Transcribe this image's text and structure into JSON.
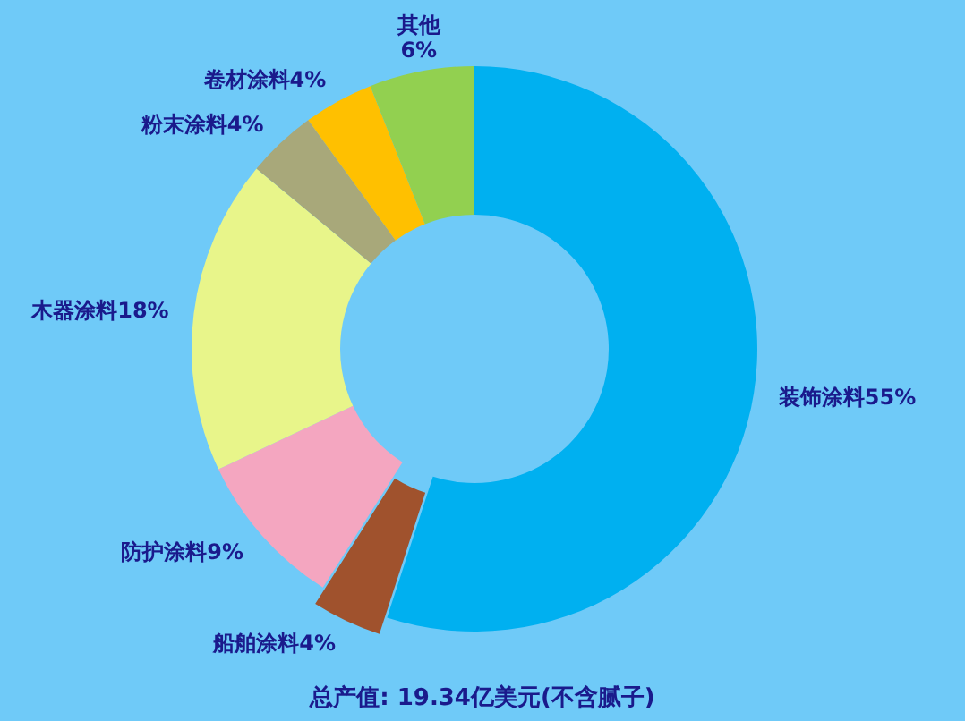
{
  "chart_data": {
    "type": "donut",
    "categories": [
      "装饰涂料",
      "船舶涂料",
      "防护涂料",
      "木器涂料",
      "粉末涂料",
      "卷材涂料",
      "其他"
    ],
    "values": [
      55,
      4,
      9,
      18,
      4,
      4,
      6
    ],
    "colors": [
      "#00b0f0",
      "#a0522d",
      "#f4a6c0",
      "#e8f58a",
      "#a8a87a",
      "#ffc000",
      "#92d050"
    ],
    "value_labels": [
      "55%",
      "4%",
      "9%",
      "18%",
      "4%",
      "4%",
      "6%"
    ],
    "annotations": [
      "总产值: 19.34亿美元(不含腻子)"
    ]
  }
}
